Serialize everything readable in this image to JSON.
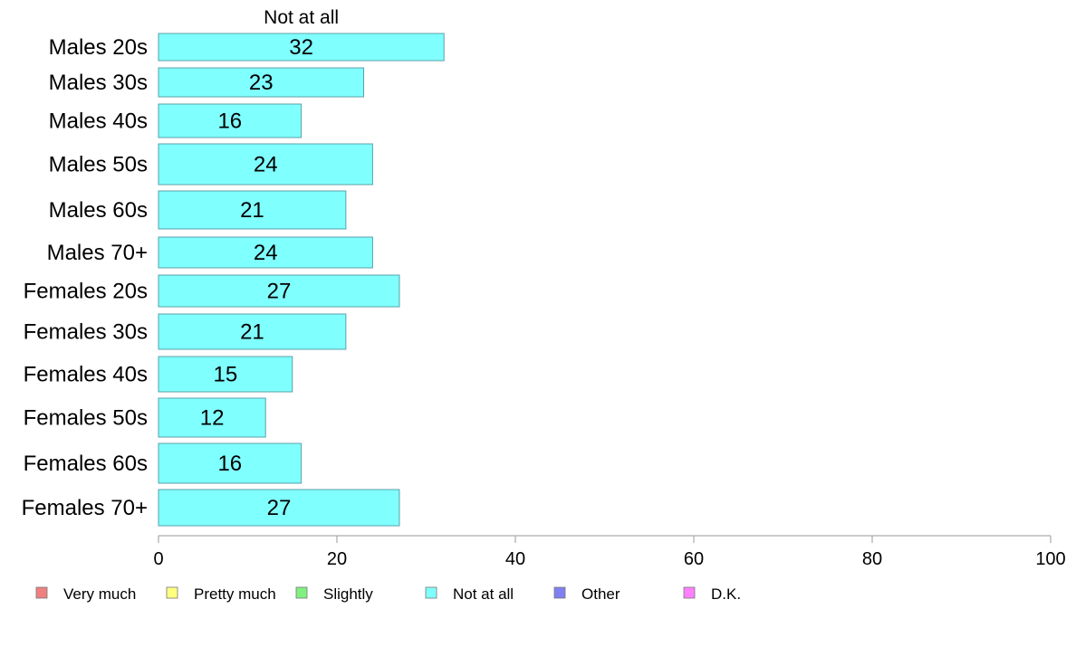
{
  "chart_data": {
    "type": "bar",
    "orientation": "horizontal",
    "categories": [
      "Males 20s",
      "Males 30s",
      "Males 40s",
      "Males 50s",
      "Males 60s",
      "Males 70+",
      "Females 20s",
      "Females 30s",
      "Females 40s",
      "Females 50s",
      "Females 60s",
      "Females 70+"
    ],
    "series": [
      {
        "name": "Not at all",
        "values": [
          32,
          23,
          16,
          24,
          21,
          24,
          27,
          21,
          15,
          12,
          16,
          27
        ]
      }
    ],
    "series_header": "Not at all",
    "xlim": [
      0,
      100
    ],
    "xticks": [
      0,
      20,
      40,
      60,
      80,
      100
    ],
    "grid": false,
    "legend_position": "bottom",
    "legend": [
      {
        "label": "Very much",
        "color": "#f08080"
      },
      {
        "label": "Pretty much",
        "color": "#ffff80"
      },
      {
        "label": "Slightly",
        "color": "#80f080"
      },
      {
        "label": "Not at all",
        "color": "#80ffff"
      },
      {
        "label": "Other",
        "color": "#8080f0"
      },
      {
        "label": "D.K.",
        "color": "#ff80ff"
      }
    ],
    "bar_color": "#80ffff",
    "bar_stroke": "#5aa0a8"
  }
}
